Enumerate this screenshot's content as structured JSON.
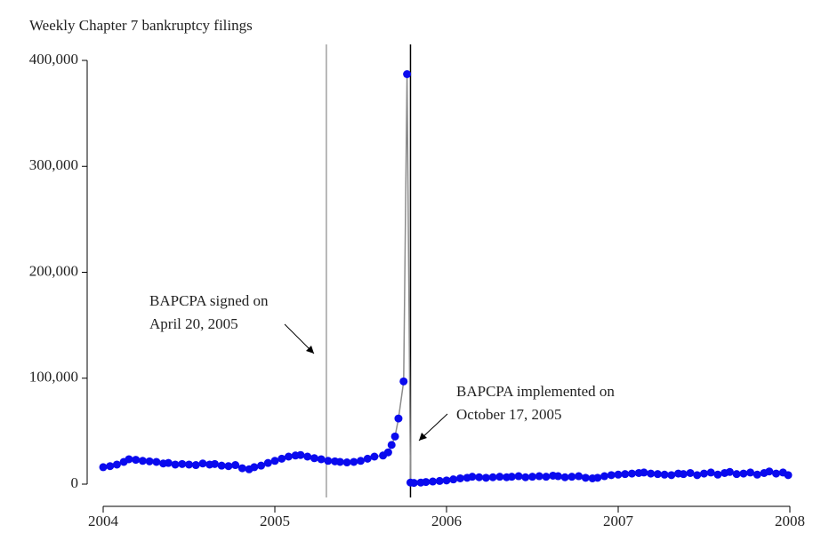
{
  "chart_data": {
    "type": "scatter",
    "title": "Weekly Chapter 7 bankruptcy filings",
    "x": [
      2004.0,
      2004.04,
      2004.08,
      2004.12,
      2004.15,
      2004.19,
      2004.23,
      2004.27,
      2004.31,
      2004.35,
      2004.38,
      2004.42,
      2004.46,
      2004.5,
      2004.54,
      2004.58,
      2004.62,
      2004.65,
      2004.69,
      2004.73,
      2004.77,
      2004.81,
      2004.85,
      2004.88,
      2004.92,
      2004.96,
      2005.0,
      2005.04,
      2005.08,
      2005.12,
      2005.15,
      2005.19,
      2005.23,
      2005.27,
      2005.31,
      2005.35,
      2005.38,
      2005.42,
      2005.46,
      2005.5,
      2005.54,
      2005.58,
      2005.63,
      2005.66,
      2005.68,
      2005.7,
      2005.72,
      2005.75,
      2005.77,
      2005.79,
      2005.81,
      2005.85,
      2005.88,
      2005.92,
      2005.96,
      2006.0,
      2006.04,
      2006.08,
      2006.12,
      2006.15,
      2006.19,
      2006.23,
      2006.27,
      2006.31,
      2006.35,
      2006.38,
      2006.42,
      2006.46,
      2006.5,
      2006.54,
      2006.58,
      2006.62,
      2006.65,
      2006.69,
      2006.73,
      2006.77,
      2006.81,
      2006.85,
      2006.88,
      2006.92,
      2006.96,
      2007.0,
      2007.04,
      2007.08,
      2007.12,
      2007.15,
      2007.19,
      2007.23,
      2007.27,
      2007.31,
      2007.35,
      2007.38,
      2007.42,
      2007.46,
      2007.5,
      2007.54,
      2007.58,
      2007.62,
      2007.65,
      2007.69,
      2007.73,
      2007.77,
      2007.81,
      2007.85,
      2007.88,
      2007.92,
      2007.96,
      2007.99
    ],
    "values": [
      16000,
      17000,
      18500,
      21000,
      23500,
      23000,
      22000,
      21500,
      21000,
      19500,
      20000,
      18500,
      19000,
      18500,
      18000,
      19500,
      18500,
      19000,
      17500,
      17000,
      18000,
      15000,
      14000,
      16000,
      17500,
      20000,
      22000,
      24000,
      26000,
      27000,
      27500,
      26000,
      24500,
      23500,
      22000,
      21500,
      21000,
      20500,
      21000,
      22000,
      24000,
      26000,
      27000,
      30000,
      37000,
      45000,
      62000,
      97000,
      387000,
      1500,
      1200,
      1500,
      2000,
      2500,
      3000,
      3500,
      4500,
      5500,
      6000,
      7000,
      6500,
      6000,
      6500,
      7000,
      6500,
      7000,
      7500,
      6500,
      7000,
      7500,
      7000,
      8000,
      7500,
      6500,
      7000,
      7500,
      6000,
      5500,
      6000,
      7500,
      8500,
      9000,
      9500,
      10000,
      10500,
      11000,
      10000,
      9500,
      9000,
      8500,
      10000,
      9500,
      10500,
      8500,
      10000,
      11000,
      9000,
      10500,
      11500,
      9500,
      10000,
      11000,
      9000,
      10500,
      12000,
      10000,
      11000,
      8500
    ],
    "color": "#0a0aee",
    "line_color": "#8c8c8c",
    "xlim": [
      2004,
      2008
    ],
    "xticks": [
      2004,
      2005,
      2006,
      2007,
      2008
    ],
    "ylim": [
      0,
      400000
    ],
    "yticks": [
      0,
      {
        "value": 100000,
        "label": "100,000"
      },
      {
        "value": 200000,
        "label": "200,000"
      },
      {
        "value": 300000,
        "label": "300,000"
      },
      {
        "value": 400000,
        "label": "400,000"
      }
    ],
    "vlines": [
      {
        "x": 2005.3,
        "color": "#a0a0a0"
      },
      {
        "x": 2005.79,
        "color": "#000000"
      }
    ],
    "annotations": [
      {
        "lines": [
          "BAPCPA signed on",
          "April 20, 2005"
        ]
      },
      {
        "lines": [
          "BAPCPA implemented on",
          "October 17, 2005"
        ]
      }
    ]
  }
}
